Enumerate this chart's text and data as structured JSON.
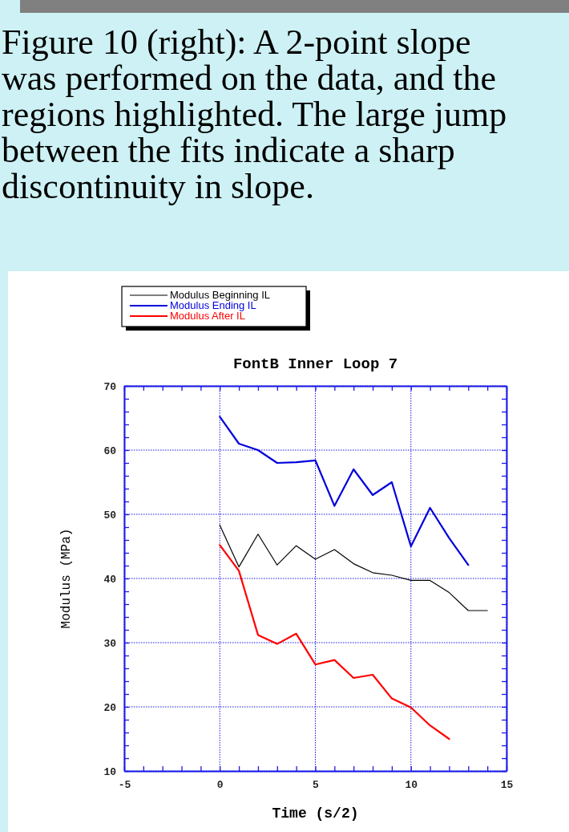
{
  "chart_data": {
    "type": "line",
    "title": "FontB Inner Loop 7",
    "xlabel": "Time (s/2)",
    "ylabel": "Modulus (MPa)",
    "annotations": [
      "Figure 10 (right): A 2-point slope was performed on the data, and the regions highlighted.  The large jump between the fits indicate a sharp discontinuity in slope."
    ],
    "series": [
      {
        "name": "Modulus Beginning IL",
        "color": "#000000",
        "x": [
          0,
          1,
          2,
          3,
          4,
          5,
          6,
          7,
          8,
          9,
          10,
          11,
          12,
          13,
          14
        ],
        "values": [
          48.3,
          41.8,
          46.9,
          42.1,
          45.1,
          43.0,
          44.5,
          42.3,
          40.9,
          40.5,
          39.7,
          39.7,
          37.8,
          35.0,
          35.0
        ]
      },
      {
        "name": "Modulus Ending IL",
        "color": "#0000dd",
        "x": [
          0,
          1,
          2,
          3,
          4,
          5,
          6,
          7,
          8,
          9,
          10,
          11,
          12,
          13
        ],
        "values": [
          65.2,
          61.0,
          60.0,
          58.0,
          58.1,
          58.4,
          51.3,
          57.0,
          53.0,
          55.0,
          45.0,
          51.0,
          46.3,
          42.1
        ]
      },
      {
        "name": "Modulus After IL",
        "color": "#ff0000",
        "x": [
          0,
          1,
          2,
          3,
          4,
          5,
          6,
          7,
          8,
          9,
          10,
          11,
          12
        ],
        "values": [
          45.2,
          41.2,
          31.2,
          29.8,
          31.4,
          26.6,
          27.3,
          24.5,
          25.0,
          21.3,
          19.9,
          17.1,
          15.0
        ]
      }
    ],
    "xlim": [
      -5,
      15
    ],
    "xticks": [
      -5,
      {
        "value": -4,
        "label": null
      },
      {
        "value": -3,
        "label": null
      },
      {
        "value": -2,
        "label": null
      },
      {
        "value": -1,
        "label": null
      },
      0,
      {
        "value": 1,
        "label": null
      },
      {
        "value": 2,
        "label": null
      },
      {
        "value": 3,
        "label": null
      },
      {
        "value": 4,
        "label": null
      },
      5,
      {
        "value": 6,
        "label": null
      },
      {
        "value": 7,
        "label": null
      },
      {
        "value": 8,
        "label": null
      },
      {
        "value": 9,
        "label": null
      },
      10,
      {
        "value": 11,
        "label": null
      },
      {
        "value": 12,
        "label": null
      },
      {
        "value": 13,
        "label": null
      },
      {
        "value": 14,
        "label": null
      },
      15
    ],
    "ylim": [
      10,
      70
    ],
    "yticks": [
      10,
      {
        "value": 12,
        "label": null
      },
      {
        "value": 14,
        "label": null
      },
      {
        "value": 16,
        "label": null
      },
      {
        "value": 18,
        "label": null
      },
      20,
      {
        "value": 22,
        "label": null
      },
      {
        "value": 24,
        "label": null
      },
      {
        "value": 26,
        "label": null
      },
      {
        "value": 28,
        "label": null
      },
      30,
      {
        "value": 32,
        "label": null
      },
      {
        "value": 34,
        "label": null
      },
      {
        "value": 36,
        "label": null
      },
      {
        "value": 38,
        "label": null
      },
      40,
      {
        "value": 42,
        "label": null
      },
      {
        "value": 44,
        "label": null
      },
      {
        "value": 46,
        "label": null
      },
      {
        "value": 48,
        "label": null
      },
      50,
      {
        "value": 52,
        "label": null
      },
      {
        "value": 54,
        "label": null
      },
      {
        "value": 56,
        "label": null
      },
      {
        "value": 58,
        "label": null
      },
      60,
      {
        "value": 62,
        "label": null
      },
      {
        "value": 64,
        "label": null
      },
      {
        "value": 66,
        "label": null
      },
      {
        "value": 68,
        "label": null
      },
      70
    ],
    "grid": true,
    "legend": "top left",
    "line_style": "solid",
    "marker": "none"
  }
}
